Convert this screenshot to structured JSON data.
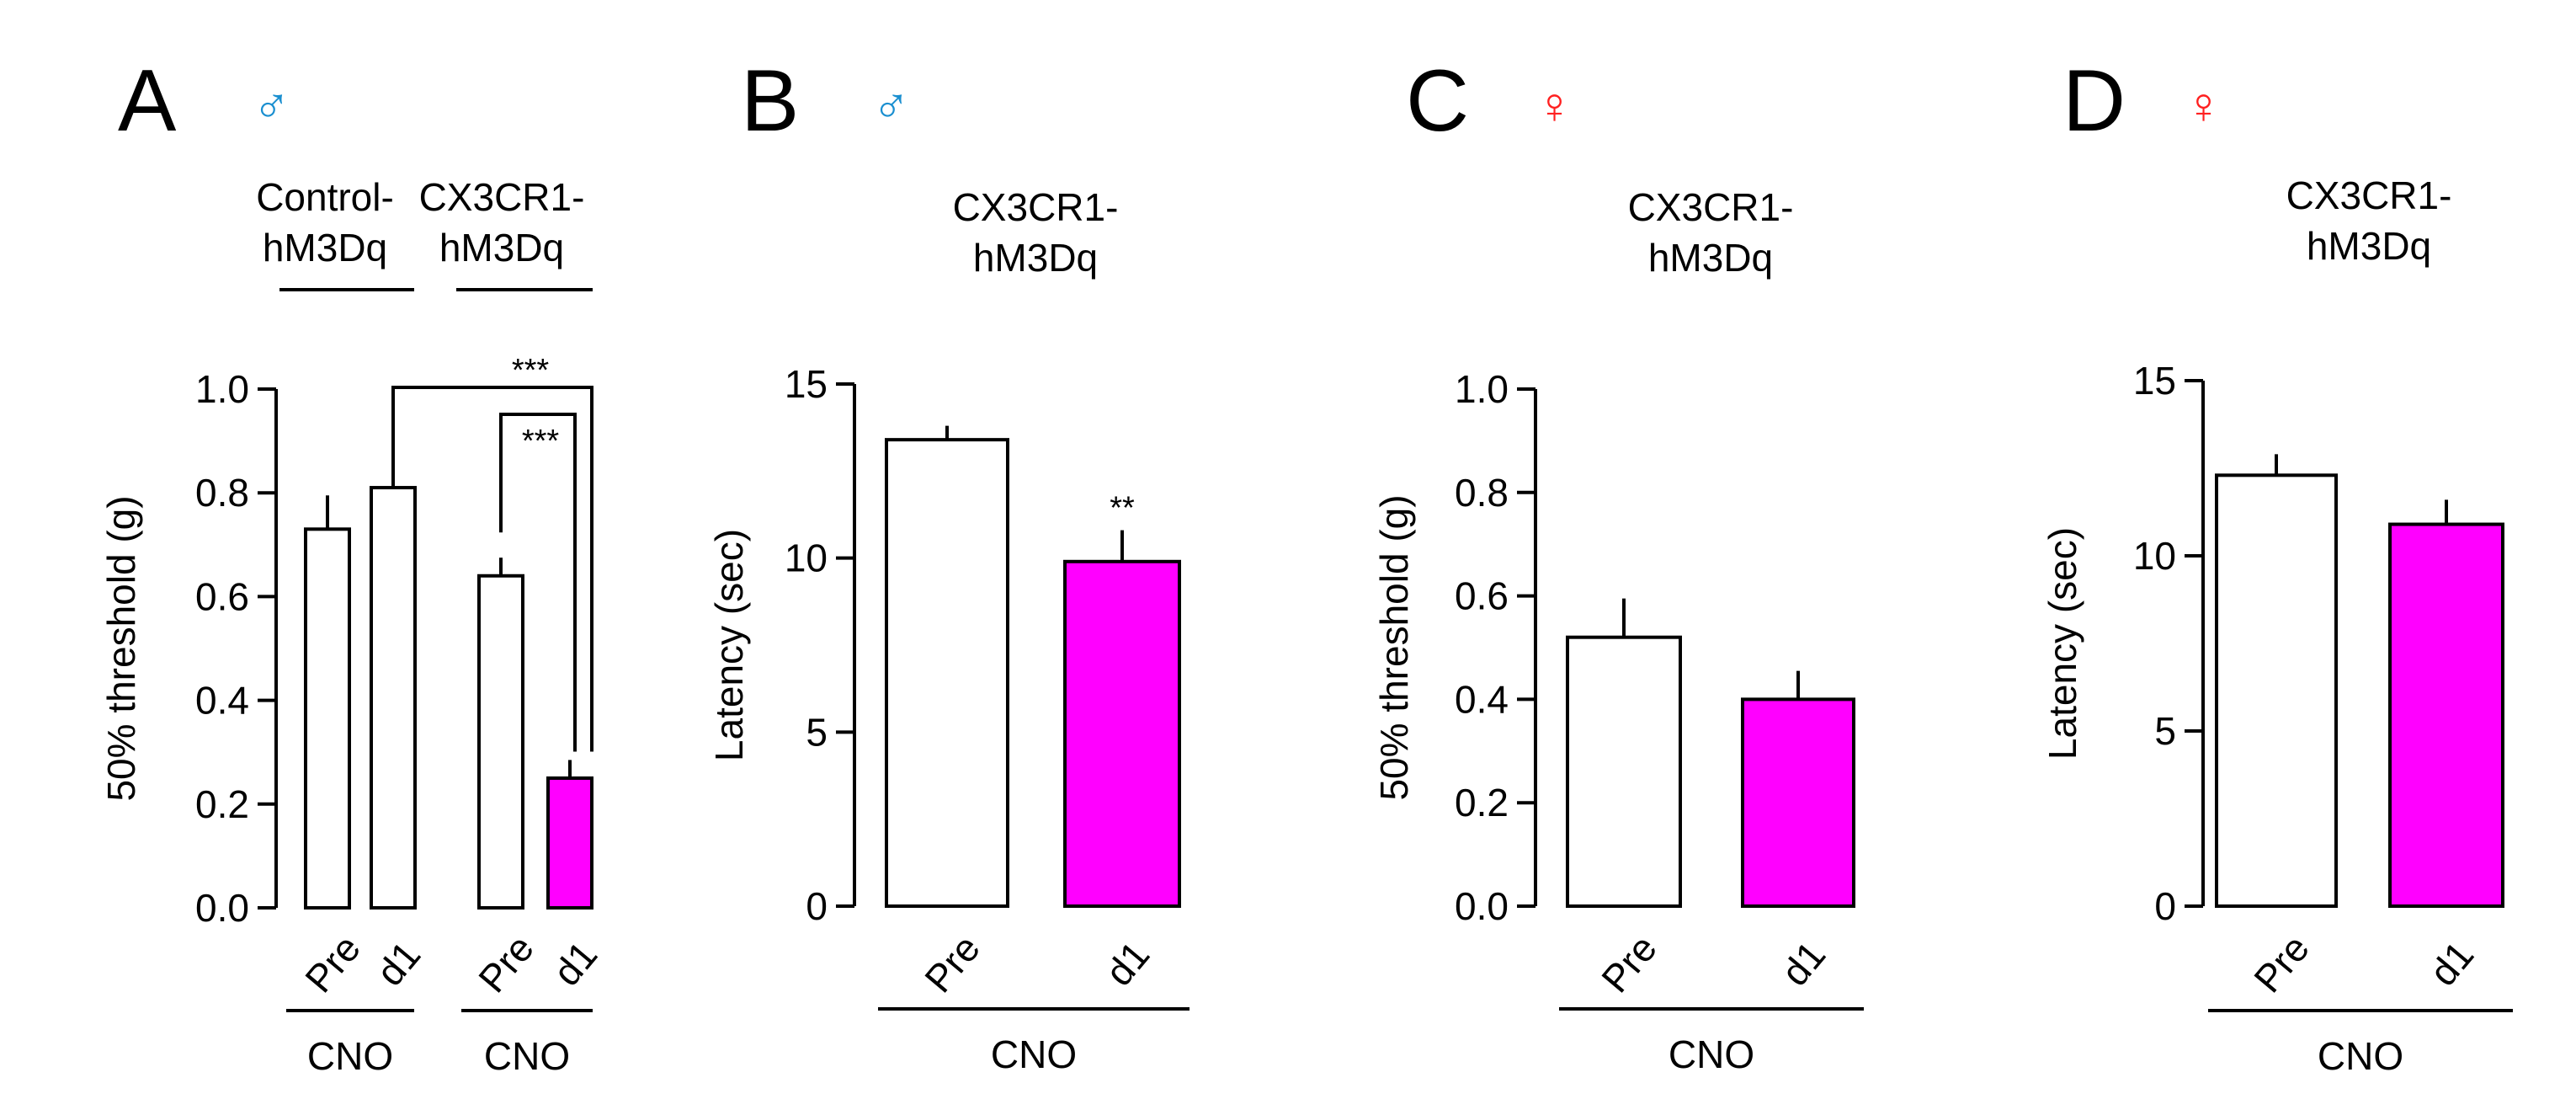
{
  "colors": {
    "male": "#1a8fd0",
    "female": "#ff2020",
    "cno_bar": "#ff00ff",
    "pre_bar": "#ffffff"
  },
  "chart_data": [
    {
      "panel": "A",
      "sex_symbol": "♂",
      "type": "bar",
      "ylabel": "50% threshold (g)",
      "ylim": [
        0,
        1.0
      ],
      "yticks": [
        "0.0",
        "0.2",
        "0.4",
        "0.6",
        "0.8",
        "1.0"
      ],
      "groups": [
        {
          "label_lines": [
            "Control-",
            "hM3Dq"
          ],
          "treatment": "CNO",
          "bars": [
            {
              "label": "Pre",
              "value": 0.73,
              "err": 0.065,
              "fill": "white"
            },
            {
              "label": "d1",
              "value": 0.81,
              "err": 0.065,
              "fill": "white"
            }
          ]
        },
        {
          "label_lines": [
            "CX3CR1-",
            "hM3Dq"
          ],
          "treatment": "CNO",
          "bars": [
            {
              "label": "Pre",
              "value": 0.64,
              "err": 0.035,
              "fill": "white"
            },
            {
              "label": "d1",
              "value": 0.25,
              "err": 0.035,
              "fill": "magenta"
            }
          ]
        }
      ],
      "significance": [
        {
          "text": "***"
        },
        {
          "text": "***"
        }
      ]
    },
    {
      "panel": "B",
      "sex_symbol": "♂",
      "type": "bar",
      "ylabel": "Latency (sec)",
      "ylim": [
        0,
        15
      ],
      "yticks": [
        "0",
        "5",
        "10",
        "15"
      ],
      "groups": [
        {
          "label_lines": [
            "CX3CR1-",
            "hM3Dq"
          ],
          "treatment": "CNO",
          "bars": [
            {
              "label": "Pre",
              "value": 13.4,
              "err": 0.4,
              "fill": "white"
            },
            {
              "label": "d1",
              "value": 9.9,
              "err": 0.9,
              "fill": "magenta",
              "sig": "**"
            }
          ]
        }
      ]
    },
    {
      "panel": "C",
      "sex_symbol": "♀",
      "type": "bar",
      "ylabel": "50% threshold (g)",
      "ylim": [
        0,
        1.0
      ],
      "yticks": [
        "0.0",
        "0.2",
        "0.4",
        "0.6",
        "0.8",
        "1.0"
      ],
      "groups": [
        {
          "label_lines": [
            "CX3CR1-",
            "hM3Dq"
          ],
          "treatment": "CNO",
          "bars": [
            {
              "label": "Pre",
              "value": 0.52,
              "err": 0.075,
              "fill": "white"
            },
            {
              "label": "d1",
              "value": 0.4,
              "err": 0.055,
              "fill": "magenta"
            }
          ]
        }
      ]
    },
    {
      "panel": "D",
      "sex_symbol": "♀",
      "type": "bar",
      "ylabel": "Latency (sec)",
      "ylim": [
        0,
        15
      ],
      "yticks": [
        "0",
        "5",
        "10",
        "15"
      ],
      "groups": [
        {
          "label_lines": [
            "CX3CR1-",
            "hM3Dq"
          ],
          "treatment": "CNO",
          "bars": [
            {
              "label": "Pre",
              "value": 12.3,
              "err": 0.6,
              "fill": "white"
            },
            {
              "label": "d1",
              "value": 10.9,
              "err": 0.7,
              "fill": "magenta"
            }
          ]
        }
      ]
    }
  ]
}
